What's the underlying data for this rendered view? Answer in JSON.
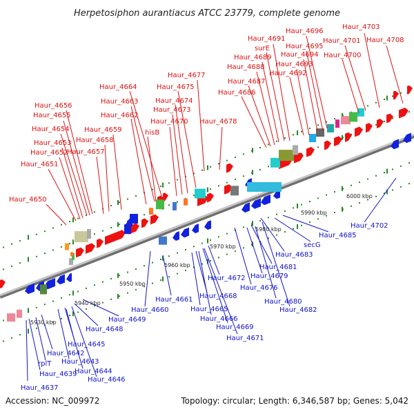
{
  "title": "Herpetosiphon aurantiacus ATCC 23779, complete genome",
  "footer": {
    "accession": "Accession: NC_009972",
    "topology": "Topology: circular; Length: 6,346,587 bp; Genes: 5,042"
  },
  "colors": {
    "forward_label": "#dd1111",
    "reverse_label": "#1111cc",
    "forward_gene": "#ee1111",
    "reverse_gene": "#1122dd",
    "backbone": "#999999",
    "tick": "#228822"
  },
  "ticks": [
    "5930 kbp",
    "5940 kbp",
    "5950 kbp",
    "5960 kbp",
    "5970 kbp",
    "5980 kbp",
    "5990 kbp",
    "6000 kbp"
  ],
  "forward_labels": [
    "Haur_4650",
    "Haur_4651",
    "Haur_4652",
    "Haur_4653",
    "Haur_4654",
    "Haur_4655",
    "Haur_4656",
    "Haur_4657",
    "Haur_4658",
    "Haur_4659",
    "Haur_4662",
    "Haur_4663",
    "Haur_4664",
    "hisB",
    "Haur_4670",
    "Haur_4673",
    "Haur_4674",
    "Haur_4675",
    "Haur_4677",
    "Haur_4678",
    "Haur_4686",
    "Haur_4687",
    "Haur_4688",
    "Haur_4689",
    "surE",
    "Haur_4691",
    "Haur_4692",
    "Haur_4693",
    "Haur_4694",
    "Haur_4695",
    "Haur_4696",
    "Haur_4700",
    "Haur_4701",
    "Haur_4703",
    "Haur_4708"
  ],
  "reverse_labels": [
    "Haur_4637",
    "Haur_4639",
    "rplT",
    "Haur_4642",
    "Haur_4643",
    "Haur_4644",
    "Haur_4645",
    "Haur_4646",
    "Haur_4648",
    "Haur_4649",
    "Haur_4660",
    "Haur_4661",
    "Haur_4665",
    "Haur_4666",
    "Haur_4668",
    "Haur_4669",
    "Haur_4671",
    "Haur_4672",
    "Haur_4676",
    "Haur_4679",
    "Haur_4680",
    "Haur_4681",
    "Haur_4682",
    "Haur_4683",
    "secG",
    "Haur_4685",
    "Haur_4702"
  ]
}
